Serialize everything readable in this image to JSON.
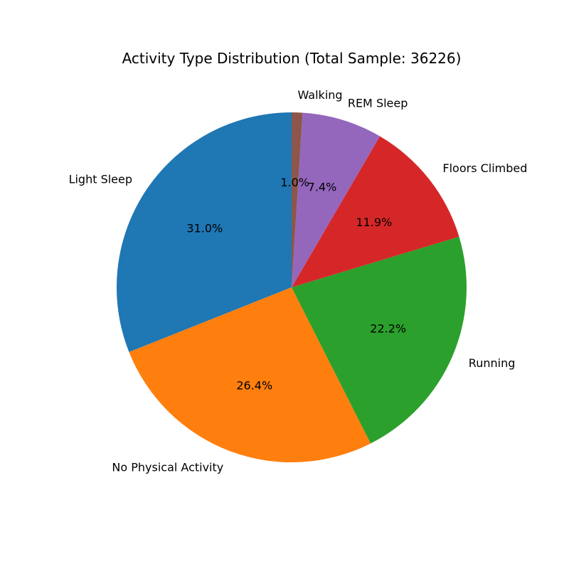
{
  "chart_data": {
    "type": "pie",
    "title": "Activity Type Distribution (Total Sample: 36226)",
    "start_angle_deg": 90,
    "direction": "counterclockwise",
    "slices": [
      {
        "label": "Light Sleep",
        "value": 31.0,
        "pct_label": "31.0%",
        "color": "#1f77b4"
      },
      {
        "label": "No Physical Activity",
        "value": 26.4,
        "pct_label": "26.4%",
        "color": "#ff7f0e"
      },
      {
        "label": "Running",
        "value": 22.2,
        "pct_label": "22.2%",
        "color": "#2ca02c"
      },
      {
        "label": "Floors Climbed",
        "value": 11.9,
        "pct_label": "11.9%",
        "color": "#d62728"
      },
      {
        "label": "REM Sleep",
        "value": 7.4,
        "pct_label": "7.4%",
        "color": "#9467bd"
      },
      {
        "label": "Walking",
        "value": 1.0,
        "pct_label": "1.0%",
        "color": "#8c564b"
      }
    ]
  }
}
